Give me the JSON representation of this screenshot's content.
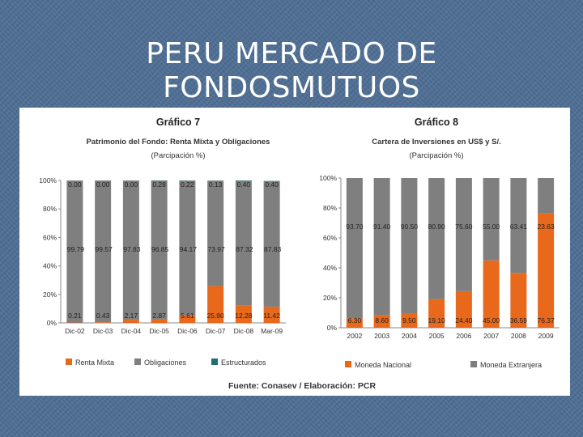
{
  "slide": {
    "title_line1": "PERU MERCADO DE",
    "title_line2": "FONDOSMUTUOS"
  },
  "source_note": "Fuente: Conasev / Elaboración: PCR",
  "colors": {
    "orange": "#e8681c",
    "gray": "#7f7f7f",
    "teal": "#1f6f74",
    "background": "#4e6f95"
  },
  "chart_data": [
    {
      "type": "bar",
      "stacked": true,
      "title": "Gráfico 7",
      "subtitle": "Patrimonio del Fondo: Renta Mixta y Obligaciones",
      "subtitle2": "(Parcipación %)",
      "categories": [
        "Dic-02",
        "Dic-03",
        "Dic-04",
        "Dic-05",
        "Dic-06",
        "Dic-07",
        "Dic-08",
        "Mar-09"
      ],
      "ytick_labels": [
        "0%",
        "20%",
        "40%",
        "60%",
        "80%",
        "100%"
      ],
      "ylim": [
        0,
        100
      ],
      "legend": "bottom",
      "series": [
        {
          "name": "Renta Mixta",
          "color": "#e8681c",
          "values": [
            0.21,
            0.43,
            2.17,
            2.87,
            5.61,
            25.9,
            12.28,
            11.42
          ],
          "labels": [
            "0.21",
            "0.43",
            "2.17",
            "2.87",
            "5.61",
            "25.90",
            "12.28",
            "11.42"
          ]
        },
        {
          "name": "Obligaciones",
          "color": "#7f7f7f",
          "values": [
            99.79,
            99.57,
            97.83,
            96.85,
            94.17,
            73.97,
            87.32,
            87.83
          ],
          "labels": [
            "99.79",
            "99.57",
            "97.83",
            "96.85",
            "94.17",
            "73.97",
            "87.32",
            "87.83"
          ]
        },
        {
          "name": "Estructurados",
          "color": "#1f6f74",
          "values": [
            0.0,
            0.0,
            0.0,
            0.28,
            0.22,
            0.13,
            0.4,
            0.4
          ],
          "labels": [
            "0.00",
            "0.00",
            "0.00",
            "0.28",
            "0.22",
            "0.13",
            "0.40",
            "0.40"
          ]
        }
      ]
    },
    {
      "type": "bar",
      "stacked": true,
      "title": "Gráfico 8",
      "subtitle": "Cartera de Inversiones en US$ y S/.",
      "subtitle2": "(Parcipación %)",
      "categories": [
        "2002",
        "2003",
        "2004",
        "2005",
        "2006",
        "2007",
        "2008",
        "2009"
      ],
      "ytick_labels": [
        "0%",
        "20%",
        "40%",
        "60%",
        "80%",
        "100%"
      ],
      "ylim": [
        0,
        100
      ],
      "legend": "bottom",
      "series": [
        {
          "name": "Moneda Nacional",
          "color": "#e8681c",
          "values": [
            6.3,
            8.6,
            9.5,
            19.1,
            24.4,
            45.0,
            36.59,
            76.37
          ],
          "labels": [
            "6.30",
            "8.60",
            "9.50",
            "19.10",
            "24.40",
            "45.00",
            "36.59",
            "76.37"
          ]
        },
        {
          "name": "Moneda Extranjera",
          "color": "#7f7f7f",
          "values": [
            93.7,
            91.4,
            90.5,
            80.9,
            75.6,
            55.0,
            63.41,
            23.63
          ],
          "labels": [
            "93.70",
            "91.40",
            "90.50",
            "80.90",
            "75.60",
            "55.00",
            "63.41",
            "23.63"
          ]
        }
      ]
    }
  ]
}
